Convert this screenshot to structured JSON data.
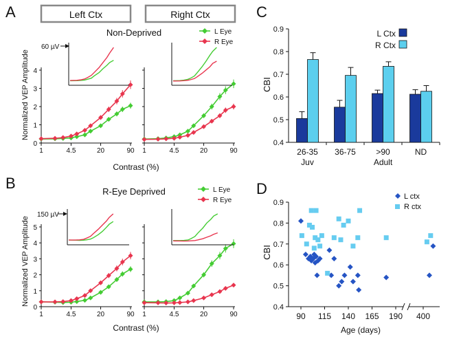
{
  "panels": {
    "A": {
      "letter": "A",
      "title": "Non-Deprived",
      "header_left": "Left Ctx",
      "header_right": "Right Ctx",
      "legend": [
        "L Eye",
        "R Eye"
      ],
      "scale_label": "60 µV",
      "ylabel": "Normalized VEP Amplitude",
      "xlabel": "Contrast (%)"
    },
    "B": {
      "letter": "B",
      "title": "R-Eye Deprived",
      "legend": [
        "L Eye",
        "R Eye"
      ],
      "scale_label": "150 µV",
      "ylabel": "Normalized VEP Amplitude",
      "xlabel": "Contrast (%)"
    },
    "C": {
      "letter": "C",
      "legend": [
        "L Ctx",
        "R Ctx"
      ],
      "ylabel": "CBI"
    },
    "D": {
      "letter": "D",
      "legend": [
        "L ctx",
        "R ctx"
      ],
      "ylabel": "CBI",
      "xlabel": "Age (days)"
    }
  },
  "colors": {
    "l_eye": "#44cc33",
    "r_eye": "#e8354e",
    "l_ctx": "#1a3a9c",
    "r_ctx": "#5ccfee",
    "l_ctx_scatter": "#2554c4",
    "r_ctx_scatter": "#66ccf0",
    "header_box": "#888888"
  },
  "chart_data": [
    {
      "id": "A-left",
      "type": "line",
      "x": [
        1,
        2,
        3,
        4.5,
        6,
        9,
        12,
        20,
        30,
        45,
        60,
        90
      ],
      "xticks": [
        "1",
        "4.5",
        "20",
        "90"
      ],
      "yticks": [
        "0",
        "1",
        "2",
        "3",
        "4"
      ],
      "ylim": [
        0,
        4
      ],
      "series": [
        {
          "name": "L Eye",
          "values": [
            0.22,
            0.23,
            0.25,
            0.28,
            0.35,
            0.45,
            0.65,
            0.95,
            1.3,
            1.6,
            1.85,
            2.05
          ]
        },
        {
          "name": "R Eye",
          "values": [
            0.24,
            0.26,
            0.3,
            0.38,
            0.5,
            0.7,
            0.95,
            1.4,
            1.85,
            2.3,
            2.7,
            3.2
          ]
        }
      ]
    },
    {
      "id": "A-right",
      "type": "line",
      "x": [
        1,
        2,
        3,
        4.5,
        6,
        9,
        12,
        20,
        30,
        45,
        60,
        90
      ],
      "xticks": [
        "1",
        "4.5",
        "20",
        "90"
      ],
      "ylim": [
        0,
        4
      ],
      "series": [
        {
          "name": "L Eye",
          "values": [
            0.22,
            0.24,
            0.28,
            0.35,
            0.45,
            0.65,
            0.95,
            1.5,
            2.0,
            2.55,
            2.9,
            3.25
          ]
        },
        {
          "name": "R Eye",
          "values": [
            0.2,
            0.21,
            0.23,
            0.26,
            0.32,
            0.42,
            0.58,
            0.9,
            1.2,
            1.5,
            1.8,
            2.0
          ]
        }
      ]
    },
    {
      "id": "B-left",
      "type": "line",
      "x": [
        1,
        2,
        3,
        4.5,
        6,
        9,
        12,
        20,
        30,
        45,
        60,
        90
      ],
      "xticks": [
        "1",
        "4.5",
        "20",
        "90"
      ],
      "yticks": [
        "0",
        "1",
        "2",
        "3",
        "4",
        "5"
      ],
      "ylim": [
        0,
        5
      ],
      "series": [
        {
          "name": "L Eye",
          "values": [
            0.3,
            0.28,
            0.26,
            0.28,
            0.32,
            0.4,
            0.55,
            0.9,
            1.25,
            1.7,
            2.05,
            2.35
          ]
        },
        {
          "name": "R Eye",
          "values": [
            0.3,
            0.3,
            0.32,
            0.38,
            0.5,
            0.7,
            1.0,
            1.5,
            1.95,
            2.4,
            2.8,
            3.2
          ]
        }
      ]
    },
    {
      "id": "B-right",
      "type": "line",
      "x": [
        1,
        2,
        3,
        4.5,
        6,
        9,
        12,
        20,
        30,
        45,
        60,
        90
      ],
      "xticks": [
        "1",
        "4.5",
        "20",
        "90"
      ],
      "ylim": [
        0,
        5
      ],
      "series": [
        {
          "name": "L Eye",
          "values": [
            0.3,
            0.3,
            0.32,
            0.38,
            0.55,
            0.85,
            1.3,
            2.0,
            2.7,
            3.2,
            3.65,
            3.95
          ]
        },
        {
          "name": "R Eye",
          "values": [
            0.25,
            0.24,
            0.23,
            0.24,
            0.26,
            0.3,
            0.38,
            0.55,
            0.75,
            0.95,
            1.15,
            1.35
          ]
        }
      ]
    },
    {
      "id": "C",
      "type": "bar",
      "categories": [
        "26-35",
        "36-75",
        ">90",
        "ND"
      ],
      "sublabels": [
        "Juv",
        "",
        "Adult",
        ""
      ],
      "ylabel": "CBI",
      "ylim": [
        0.4,
        0.9
      ],
      "yticks": [
        "0.4",
        "0.5",
        "0.6",
        "0.7",
        "0.8",
        "0.9"
      ],
      "series": [
        {
          "name": "L Ctx",
          "values": [
            0.505,
            0.555,
            0.615,
            0.612
          ],
          "errors": [
            0.03,
            0.03,
            0.015,
            0.02
          ]
        },
        {
          "name": "R Ctx",
          "values": [
            0.765,
            0.695,
            0.735,
            0.625
          ],
          "errors": [
            0.03,
            0.035,
            0.02,
            0.025
          ]
        }
      ]
    },
    {
      "id": "D",
      "type": "scatter",
      "xlabel": "Age (days)",
      "ylabel": "CBI",
      "xticks": [
        "90",
        "115",
        "140",
        "165",
        "190",
        "400"
      ],
      "yticks": [
        "0.4",
        "0.5",
        "0.6",
        "0.7",
        "0.8",
        "0.9"
      ],
      "ylim": [
        0.4,
        0.9
      ],
      "series": [
        {
          "name": "L ctx",
          "points": [
            [
              90,
              0.81
            ],
            [
              95,
              0.65
            ],
            [
              98,
              0.63
            ],
            [
              100,
              0.64
            ],
            [
              101,
              0.62
            ],
            [
              103,
              0.63
            ],
            [
              104,
              0.65
            ],
            [
              105,
              0.61
            ],
            [
              106,
              0.64
            ],
            [
              107,
              0.55
            ],
            [
              108,
              0.62
            ],
            [
              110,
              0.63
            ],
            [
              120,
              0.67
            ],
            [
              122,
              0.55
            ],
            [
              125,
              0.63
            ],
            [
              130,
              0.5
            ],
            [
              133,
              0.52
            ],
            [
              136,
              0.55
            ],
            [
              142,
              0.59
            ],
            [
              145,
              0.52
            ],
            [
              150,
              0.55
            ],
            [
              151,
              0.48
            ],
            [
              180,
              0.54
            ],
            [
              405,
              0.55
            ],
            [
              408,
              0.69
            ]
          ]
        },
        {
          "name": "R ctx",
          "points": [
            [
              91,
              0.74
            ],
            [
              96,
              0.7
            ],
            [
              99,
              0.79
            ],
            [
              101,
              0.86
            ],
            [
              102,
              0.78
            ],
            [
              104,
              0.68
            ],
            [
              105,
              0.73
            ],
            [
              106,
              0.86
            ],
            [
              108,
              0.72
            ],
            [
              110,
              0.69
            ],
            [
              112,
              0.74
            ],
            [
              118,
              0.56
            ],
            [
              125,
              0.73
            ],
            [
              130,
              0.82
            ],
            [
              132,
              0.72
            ],
            [
              135,
              0.79
            ],
            [
              140,
              0.81
            ],
            [
              145,
              0.69
            ],
            [
              150,
              0.73
            ],
            [
              152,
              0.86
            ],
            [
              180,
              0.73
            ],
            [
              403,
              0.71
            ],
            [
              406,
              0.74
            ]
          ]
        }
      ]
    }
  ]
}
